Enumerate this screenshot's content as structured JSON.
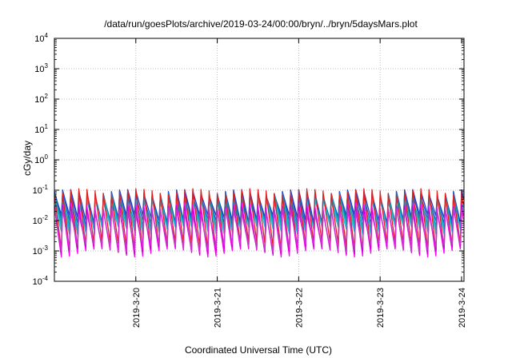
{
  "chart_data": {
    "type": "line",
    "title": "/data/run/goesPlots/archive/2019-03-24/00:00/bryn/../bryn/5daysMars.plot",
    "xlabel": "Coordinated Universal Time (UTC)",
    "ylabel": "cGy/day",
    "yscale": "log",
    "ylim": [
      0.0001,
      10000
    ],
    "y_ticks": [
      {
        "base": "10",
        "exp": "-4"
      },
      {
        "base": "10",
        "exp": "-3"
      },
      {
        "base": "10",
        "exp": "-2"
      },
      {
        "base": "10",
        "exp": "-1"
      },
      {
        "base": "10",
        "exp": "0"
      },
      {
        "base": "10",
        "exp": "1"
      },
      {
        "base": "10",
        "exp": "2"
      },
      {
        "base": "10",
        "exp": "3"
      },
      {
        "base": "10",
        "exp": "4"
      }
    ],
    "x_range_days": [
      0,
      5.03
    ],
    "x_ticks": [
      {
        "label": "2019-3-20",
        "day": 1.0
      },
      {
        "label": "2019-3-21",
        "day": 2.0
      },
      {
        "label": "2019-3-22",
        "day": 3.0
      },
      {
        "label": "2019-3-23",
        "day": 4.0
      },
      {
        "label": "2019-3-24",
        "day": 5.0
      }
    ],
    "grid": true,
    "legend": "none",
    "pattern": {
      "cycle_days": 0.1,
      "peak_envelope": [
        0.08,
        0.1
      ],
      "trough_envelope": [
        0.001,
        0.003
      ],
      "note": "repeating sawtooth, rapid rise then decay"
    },
    "series": [
      {
        "color": "#1f3fbf",
        "peak": 0.085,
        "trough": 0.012
      },
      {
        "color": "#2a4fd8",
        "peak": 0.075,
        "trough": 0.009
      },
      {
        "color": "#0aa0a0",
        "peak": 0.06,
        "trough": 0.007
      },
      {
        "color": "#17b3c8",
        "peak": 0.05,
        "trough": 0.006
      },
      {
        "color": "#20c0e0",
        "peak": 0.042,
        "trough": 0.005
      },
      {
        "color": "#e02020",
        "peak": 0.09,
        "trough": 0.0015
      },
      {
        "color": "#ff00ff",
        "peak": 0.03,
        "trough": 0.0009
      },
      {
        "color": "#d000d0",
        "peak": 0.025,
        "trough": 0.0011
      },
      {
        "color": "#cc33cc",
        "peak": 0.02,
        "trough": 0.0013
      }
    ]
  }
}
